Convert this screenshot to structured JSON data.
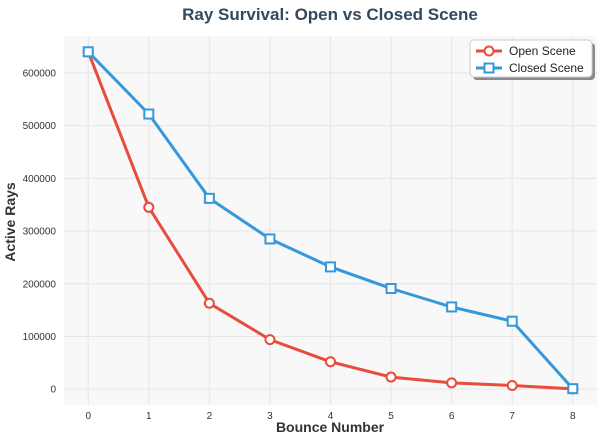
{
  "chart_data": {
    "type": "line",
    "title": "Ray Survival: Open vs Closed Scene",
    "xlabel": "Bounce Number",
    "ylabel": "Active Rays",
    "x": [
      0,
      1,
      2,
      3,
      4,
      5,
      6,
      7,
      8
    ],
    "xlim": [
      -0.4,
      8.4
    ],
    "ylim": [
      -30000,
      670000
    ],
    "yticks": [
      0,
      100000,
      200000,
      300000,
      400000,
      500000,
      600000
    ],
    "xticks": [
      0,
      1,
      2,
      3,
      4,
      5,
      6,
      7,
      8
    ],
    "grid": true,
    "legend_position": "top-right",
    "series": [
      {
        "name": "Open Scene",
        "color": "#e74c3c",
        "marker": "circle",
        "values": [
          640000,
          345000,
          163000,
          94000,
          52000,
          23000,
          12000,
          7000,
          500
        ]
      },
      {
        "name": "Closed Scene",
        "color": "#3498db",
        "marker": "square",
        "values": [
          640000,
          522000,
          362000,
          285000,
          232000,
          191000,
          156000,
          129000,
          1000
        ]
      }
    ]
  }
}
